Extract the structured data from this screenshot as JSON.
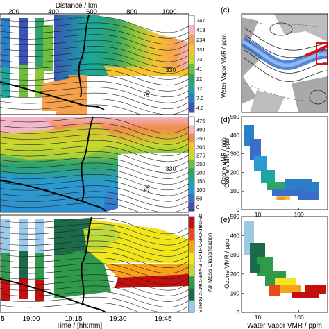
{
  "figure": {
    "top_axis": {
      "label": "Distance / km",
      "ticks": [
        "200",
        "400",
        "600",
        "800",
        "1000"
      ]
    },
    "bottom_axis": {
      "label": "Time / [hh:mm]",
      "ticks": [
        "19:00",
        "19:15",
        "19:30",
        "19:45"
      ],
      "partial_left_tick": "5"
    }
  },
  "chart_data": [
    {
      "type": "heatmap",
      "panel": "",
      "colorbar_label": "Water Vapor VMR / ppm",
      "colorbar_ticks": [
        "747",
        "418",
        "234",
        "131",
        "73",
        "41",
        "22",
        "12",
        "7.0",
        "4.0"
      ],
      "colorbar_colors": [
        "#ffffff",
        "#f4b6c9",
        "#f6a04c",
        "#f4c430",
        "#c8d92c",
        "#6cbf3c",
        "#2ea36a",
        "#1aa7a0",
        "#2b7fc9",
        "#3a55b6"
      ],
      "contour_labels": [
        "330",
        "50"
      ],
      "colors": {
        "tropopause": "#000000",
        "contour": "#222222"
      }
    },
    {
      "type": "heatmap",
      "panel": "",
      "colorbar_label": "Ozone VMR / ppb",
      "colorbar_ticks": [
        "475",
        "400",
        "350",
        "300",
        "275",
        "250",
        "200",
        "150",
        "100",
        "50",
        "0"
      ],
      "colorbar_colors": [
        "#ffffff",
        "#f4b6c9",
        "#f28a4a",
        "#f4c430",
        "#c8d92c",
        "#6cbf3c",
        "#2ea36a",
        "#1aa7a0",
        "#2b9ad0",
        "#3a6fc9",
        "#4a4bb0"
      ],
      "contour_labels": [
        "330",
        "50"
      ]
    },
    {
      "type": "heatmap",
      "panel": "",
      "colorbar_label": "Air Mass Classification",
      "classes": [
        "TRO-3b",
        "TRO-3a",
        "TRO-2",
        "TRO-1",
        "MIX-3",
        "MIX-2",
        "MIX-1",
        "STRA"
      ],
      "class_colors": [
        "#c40f0f",
        "#e8491d",
        "#f6a21a",
        "#f1e51c",
        "#bfd93a",
        "#2f9a4a",
        "#1b6a4a",
        "#9ec8e8"
      ],
      "contour_labels": [
        "330",
        "50"
      ]
    },
    {
      "type": "map",
      "panel": "(c)"
    },
    {
      "type": "heatmap",
      "panel": "(d)",
      "xlabel": "",
      "ylabel": "Ozone VMR / ppb",
      "xscale": "log",
      "xlim": [
        4,
        500
      ],
      "ylim": [
        0,
        500
      ],
      "yticks": [
        0,
        100,
        200,
        300,
        400,
        500
      ],
      "xtick_labels": [
        "10",
        "100"
      ]
    },
    {
      "type": "heatmap",
      "panel": "(e)",
      "xlabel": "Water Vapor VMR / ppm",
      "ylabel": "Ozone VMR / ppb",
      "xscale": "log",
      "xlim": [
        4,
        500
      ],
      "ylim": [
        0,
        500
      ],
      "yticks": [
        0,
        100,
        200,
        300,
        400,
        500
      ],
      "xtick_labels": [
        "10",
        "100"
      ]
    }
  ]
}
